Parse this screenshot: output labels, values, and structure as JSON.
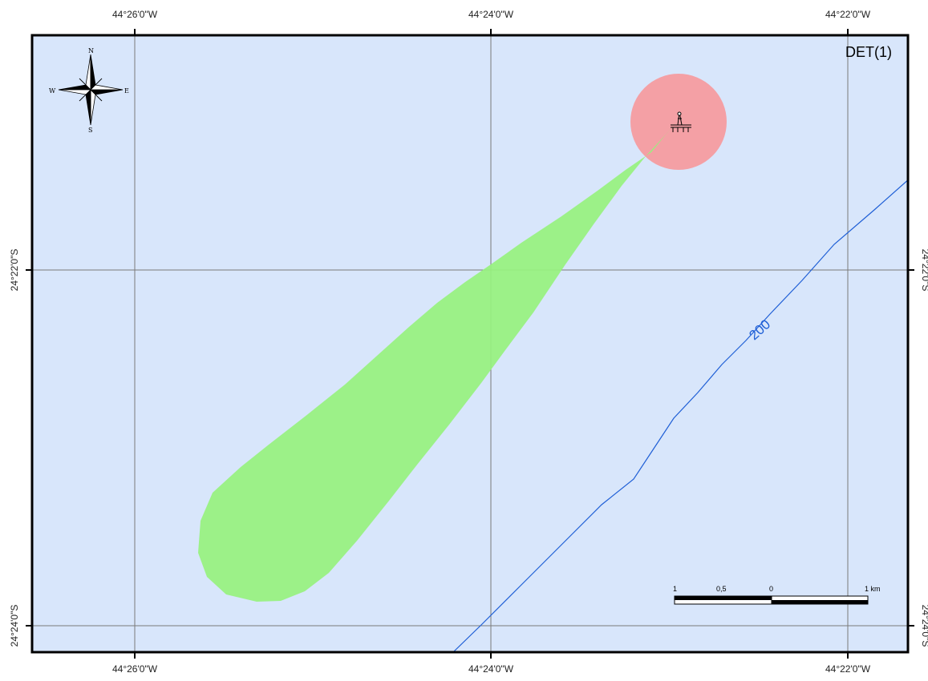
{
  "map": {
    "title": "DET(1)",
    "colors": {
      "water": "#d8e6fb",
      "frame": "#000000",
      "grid": "#7a7a7a",
      "plume": "#97f27e",
      "exclusion_zone": "#f4a0a5",
      "isobath": "#1f5fd6"
    },
    "longitude_labels": [
      "44°26'0\"W",
      "44°24'0\"W",
      "44°22'0\"W"
    ],
    "latitude_labels": [
      "24°22'0\"S",
      "24°24'0\"S"
    ],
    "isobath_label": "200",
    "compass": {
      "icon": "compass-rose-icon",
      "N": "N",
      "S": "S",
      "E": "E",
      "W": "W"
    },
    "platform": {
      "icon": "oil-platform-icon"
    },
    "scale_bar": {
      "labels": [
        "1",
        "0,5",
        "0",
        "1 km"
      ]
    }
  }
}
